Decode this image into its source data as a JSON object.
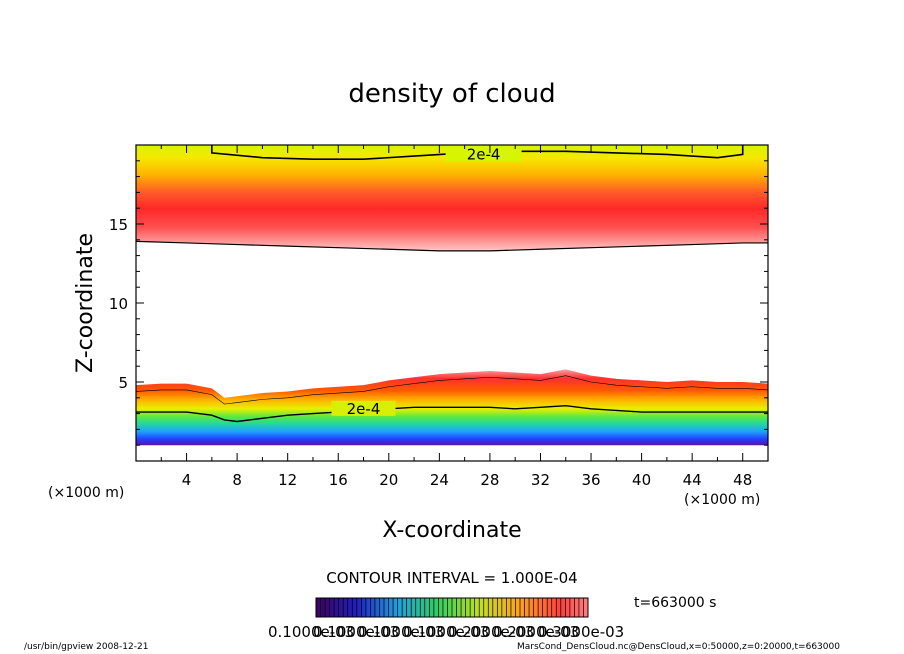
{
  "chart_data": {
    "type": "heatmap",
    "title": "density of cloud",
    "xlabel": "X-coordinate",
    "ylabel": "Z-coordinate",
    "x_unit": "(×1000 m)",
    "y_unit": "(×1000 m)",
    "xlim": [
      0,
      50
    ],
    "ylim": [
      0,
      20
    ],
    "x_ticks": [
      4,
      8,
      12,
      16,
      20,
      24,
      28,
      32,
      36,
      40,
      44,
      48
    ],
    "y_ticks": [
      5,
      10,
      15
    ],
    "contour_label_upper": "2e-4",
    "contour_label_lower": "2e-4",
    "contour_interval_text": "CONTOUR INTERVAL = 1.000E-04",
    "time_label": "t=663000 s",
    "colorbar": {
      "min": 0.0001,
      "max": 0.0007,
      "tick_labels": [
        "0.1000e-03",
        "0.1000e-03",
        "0.1000e-03",
        "0.1000e-03",
        "0.2000e-03",
        "0.2000e-03",
        "0.3000e-03"
      ]
    },
    "cloud_layers": [
      {
        "name": "",
        "bottom_x": [
          0,
          4,
          8,
          12,
          16,
          20,
          24,
          28,
          32,
          36,
          40,
          44,
          48,
          50
        ],
        "bottom_z": [
          13.9,
          13.8,
          13.7,
          13.6,
          13.5,
          13.4,
          13.3,
          13.3,
          13.4,
          13.5,
          13.6,
          13.7,
          13.8,
          13.8
        ],
        "top_z": 20,
        "peak_z": 15.5
      },
      {
        "name": "",
        "top_x": [
          0,
          2,
          4,
          6,
          7,
          8,
          10,
          12,
          14,
          16,
          18,
          20,
          22,
          24,
          26,
          28,
          30,
          32,
          34,
          36,
          38,
          40,
          42,
          44,
          46,
          48,
          50
        ],
        "top_z": [
          4.8,
          4.9,
          4.9,
          4.6,
          4.0,
          4.1,
          4.3,
          4.4,
          4.6,
          4.7,
          4.8,
          5.1,
          5.3,
          5.5,
          5.6,
          5.7,
          5.6,
          5.5,
          5.8,
          5.4,
          5.2,
          5.1,
          5.0,
          5.1,
          5.0,
          5.0,
          4.9
        ],
        "bottom_z": 1.0,
        "contour_2e4_z": [
          3.1,
          3.1,
          3.1,
          2.9,
          2.6,
          2.5,
          2.7,
          2.9,
          3.0,
          3.1,
          3.2,
          3.3,
          3.4,
          3.4,
          3.4,
          3.4,
          3.3,
          3.4,
          3.5,
          3.3,
          3.2,
          3.1,
          3.1,
          3.1,
          3.1,
          3.1,
          3.1
        ]
      }
    ],
    "upper_contour_2e4": {
      "x": [
        6,
        10,
        14,
        18,
        22,
        26,
        30,
        34,
        38,
        42,
        46,
        48
      ],
      "z": [
        19.5,
        19.2,
        19.1,
        19.1,
        19.3,
        19.5,
        19.6,
        19.6,
        19.5,
        19.4,
        19.2,
        19.4
      ]
    }
  },
  "footer": {
    "left": "/usr/bin/gpview   2008-12-21",
    "right": "MarsCond_DensCloud.nc@DensCloud,x=0:50000,z=0:20000,t=663000"
  }
}
